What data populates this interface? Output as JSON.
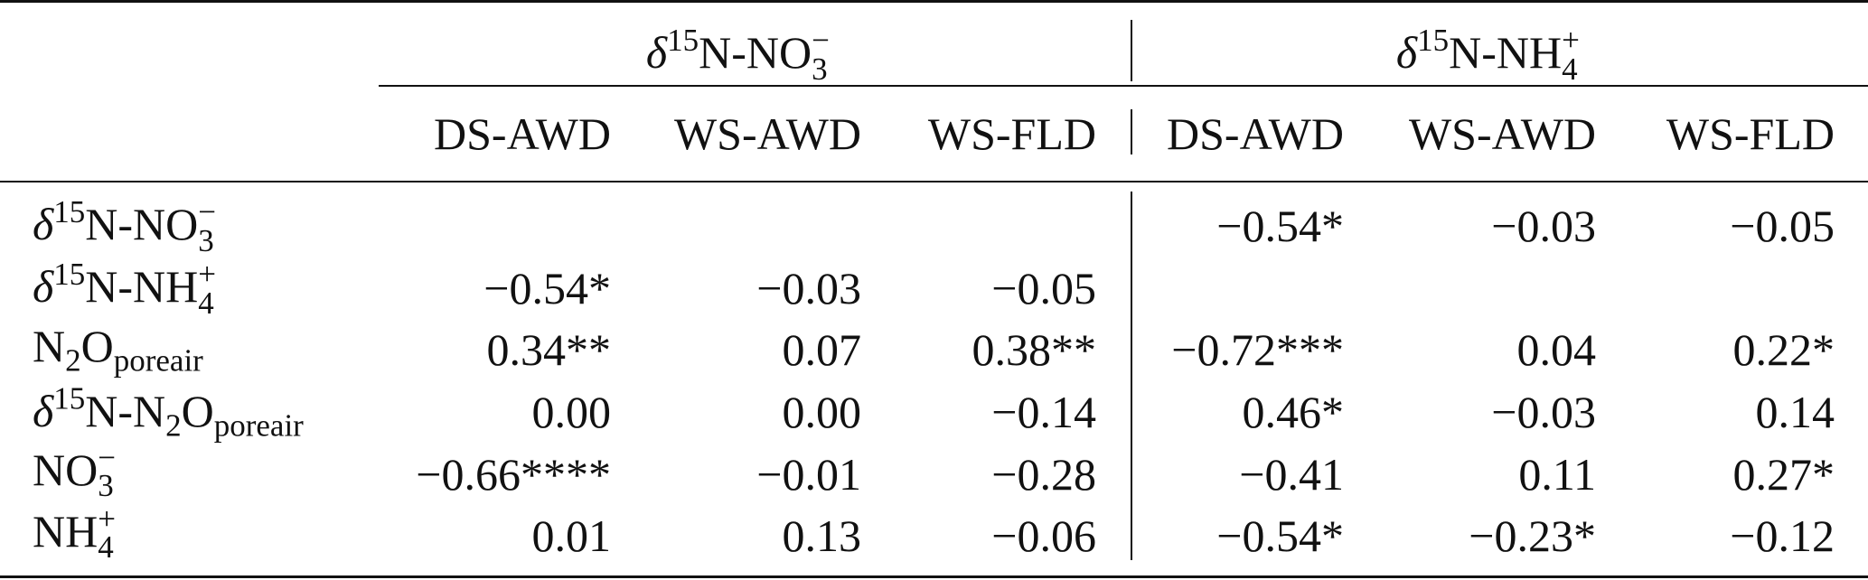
{
  "groups": [
    {
      "label": [
        {
          "t": "δ",
          "s": "it"
        },
        {
          "t": "15",
          "s": "sup"
        },
        {
          "t": "N-NO"
        },
        {
          "t": "3",
          "top": "−"
        }
      ]
    },
    {
      "label": [
        {
          "t": "δ",
          "s": "it"
        },
        {
          "t": "15",
          "s": "sup"
        },
        {
          "t": "N-NH"
        },
        {
          "t": "4",
          "top": "+"
        }
      ]
    }
  ],
  "columns": [
    "DS-AWD",
    "WS-AWD",
    "WS-FLD",
    "DS-AWD",
    "WS-AWD",
    "WS-FLD"
  ],
  "rows": [
    {
      "label": [
        {
          "t": "δ",
          "s": "it"
        },
        {
          "t": "15",
          "s": "sup"
        },
        {
          "t": "N-NO"
        },
        {
          "t": "3",
          "top": "−"
        }
      ],
      "values": [
        null,
        null,
        null,
        "−0.54*",
        "−0.03",
        "−0.05"
      ]
    },
    {
      "label": [
        {
          "t": "δ",
          "s": "it"
        },
        {
          "t": "15",
          "s": "sup"
        },
        {
          "t": "N-NH"
        },
        {
          "t": "4",
          "top": "+"
        }
      ],
      "values": [
        "−0.54*",
        "−0.03",
        "−0.05",
        null,
        null,
        null
      ]
    },
    {
      "label": [
        {
          "t": "N"
        },
        {
          "t": "2",
          "s": "sub"
        },
        {
          "t": "O"
        },
        {
          "t": "poreair",
          "s": "sub"
        }
      ],
      "values": [
        "0.34**",
        "0.07",
        "0.38**",
        "−0.72***",
        "0.04",
        "0.22*"
      ]
    },
    {
      "label": [
        {
          "t": "δ",
          "s": "it"
        },
        {
          "t": "15",
          "s": "sup"
        },
        {
          "t": "N-N"
        },
        {
          "t": "2",
          "s": "sub"
        },
        {
          "t": "O"
        },
        {
          "t": "poreair",
          "s": "sub"
        }
      ],
      "values": [
        "0.00",
        "0.00",
        "−0.14",
        "0.46*",
        "−0.03",
        "0.14"
      ]
    },
    {
      "label": [
        {
          "t": "NO"
        },
        {
          "t": "3",
          "top": "−"
        }
      ],
      "values": [
        "−0.66****",
        "−0.01",
        "−0.28",
        "−0.41",
        "0.11",
        "0.27*"
      ]
    },
    {
      "label": [
        {
          "t": "NH"
        },
        {
          "t": "4",
          "top": "+"
        }
      ],
      "values": [
        "0.01",
        "0.13",
        "−0.06",
        "−0.54*",
        "−0.23*",
        "−0.12"
      ]
    }
  ]
}
